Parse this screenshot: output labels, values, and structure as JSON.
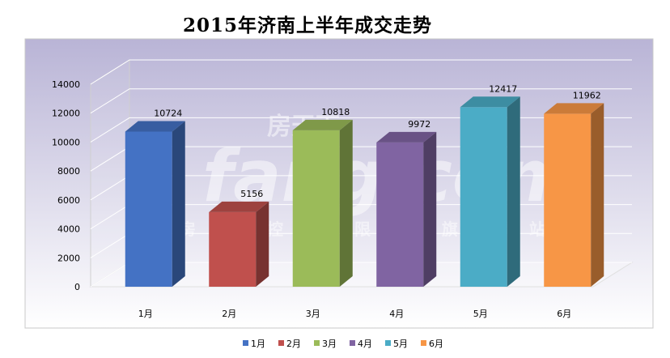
{
  "chart_data": {
    "type": "bar",
    "title": "2015年济南上半年成交走势",
    "categories": [
      "1月",
      "2月",
      "3月",
      "4月",
      "5月",
      "6月"
    ],
    "series": [
      {
        "name": "1月",
        "value": 10724,
        "color": "#4472c4"
      },
      {
        "name": "2月",
        "value": 5156,
        "color": "#c0504d"
      },
      {
        "name": "3月",
        "value": 10818,
        "color": "#9bbb59"
      },
      {
        "name": "4月",
        "value": 9972,
        "color": "#8064a2"
      },
      {
        "name": "5月",
        "value": 12417,
        "color": "#4bacc6"
      },
      {
        "name": "6月",
        "value": 11962,
        "color": "#f79646"
      }
    ],
    "yticks": [
      0,
      2000,
      4000,
      6000,
      8000,
      10000,
      12000,
      14000
    ],
    "ylim": [
      0,
      14000
    ],
    "xlabel": "",
    "ylabel": "",
    "grid": true,
    "legend_position": "bottom",
    "three_d": true,
    "background_gradient": [
      "#b9b4d6",
      "#ffffff"
    ]
  },
  "watermark": {
    "top": "房天下",
    "brand": "fang.com",
    "bottom": "房天下控股有限公司旗下网站"
  }
}
